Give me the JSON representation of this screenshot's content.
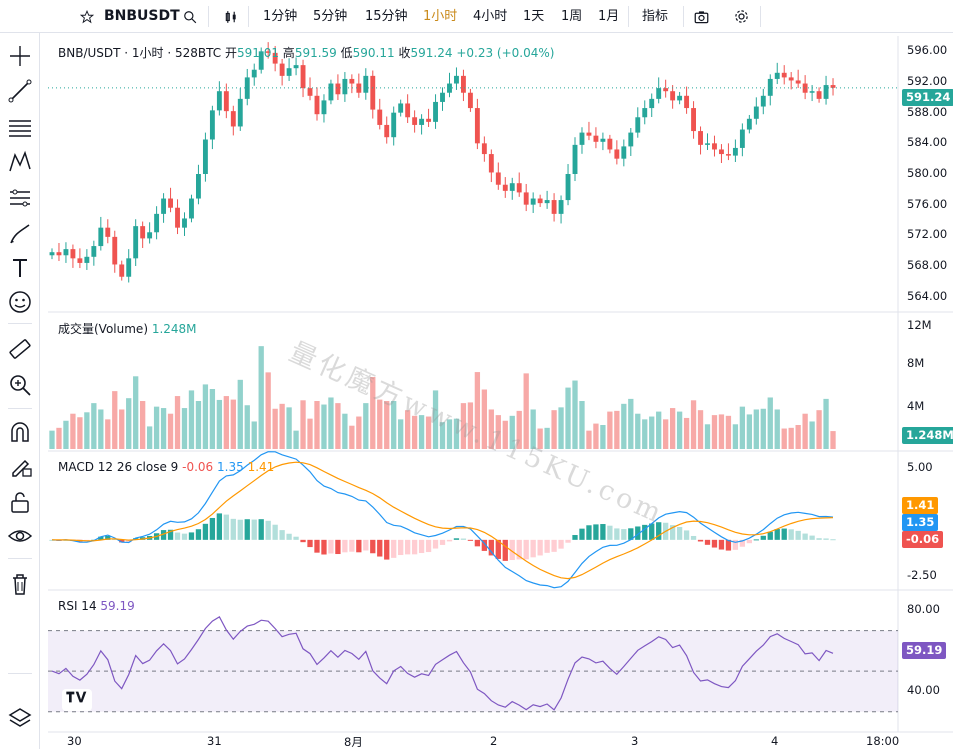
{
  "toolbar": {
    "symbol": "BNBUSDT",
    "intervals": [
      "1分钟",
      "5分钟",
      "15分钟",
      "1小时",
      "4小时",
      "1天",
      "1周",
      "1月"
    ],
    "active_interval": "1小时",
    "indicators_label": "指标",
    "icons": [
      "star-icon",
      "search-icon",
      "candle-type-icon",
      "camera-icon",
      "gear-icon"
    ]
  },
  "left_tools": [
    "crosshair-icon",
    "trend-line-icon",
    "fib-icon",
    "pattern-icon",
    "gann-icon",
    "brush-icon",
    "text-icon",
    "emoji-icon",
    "ruler-icon",
    "zoom-in-icon",
    "magnet-icon",
    "lock-draw-icon",
    "unlock-icon",
    "eye-icon",
    "trash-icon",
    "layers-icon"
  ],
  "legend": {
    "title": "BNB/USDT · 1小时 · 528BTC",
    "open_label": "开",
    "open": "591.01",
    "high_label": "高",
    "high": "591.59",
    "low_label": "低",
    "low": "590.11",
    "close_label": "收",
    "close": "591.24",
    "change": "+0.23 (+0.04%)"
  },
  "volume_legend": {
    "label": "成交量(Volume)",
    "value": "1.248M"
  },
  "macd_legend": {
    "label": "MACD 12 26 close 9",
    "hist": "-0.06",
    "macd": "1.35",
    "signal": "1.41"
  },
  "rsi_legend": {
    "label": "RSI 14",
    "value": "59.19"
  },
  "price_axis": [
    "596.00",
    "592.00",
    "588.00",
    "584.00",
    "580.00",
    "576.00",
    "572.00",
    "568.00",
    "564.00"
  ],
  "volume_axis": [
    "12M",
    "8M",
    "4M"
  ],
  "macd_axis": [
    "5.00",
    "-2.50"
  ],
  "rsi_axis": [
    "80.00",
    "40.00"
  ],
  "time_axis": [
    "30",
    "31",
    "8月",
    "2",
    "3",
    "4",
    "18:00"
  ],
  "tags": {
    "price": "591.24",
    "volume": "1.248M",
    "signal": "1.41",
    "macd": "1.35",
    "hist": "-0.06",
    "rsi": "59.19"
  },
  "colors": {
    "up": "#26a69a",
    "down": "#ef5350",
    "macd": "#2196f3",
    "signal": "#ff9800",
    "rsi": "#7e57c2",
    "accent": "#c98a1b"
  },
  "watermark": "量化魔方www.115KU.com",
  "chart_data": {
    "type": "candlestick",
    "close_series": [
      569.8,
      569.4,
      570.2,
      569.0,
      568.4,
      569.2,
      570.6,
      573.0,
      571.8,
      568.2,
      566.6,
      569.0,
      573.2,
      571.6,
      572.4,
      574.8,
      576.8,
      575.6,
      573.0,
      574.2,
      576.8,
      580.0,
      584.5,
      588.3,
      590.8,
      588.2,
      586.2,
      589.8,
      592.6,
      593.6,
      596.0,
      595.8,
      594.4,
      592.8,
      593.8,
      594.2,
      591.2,
      590.2,
      587.8,
      589.6,
      591.8,
      590.4,
      592.4,
      591.8,
      590.6,
      592.8,
      588.4,
      586.4,
      584.8,
      588.0,
      589.2,
      587.4,
      586.4,
      587.2,
      586.8,
      589.4,
      590.6,
      591.8,
      592.8,
      590.6,
      588.6,
      584.0,
      582.6,
      580.2,
      578.6,
      577.8,
      578.8,
      577.6,
      576.0,
      576.8,
      576.2,
      576.6,
      574.8,
      576.6,
      580.0,
      583.8,
      585.4,
      585.0,
      584.2,
      584.6,
      583.2,
      582.0,
      583.6,
      585.4,
      587.4,
      588.6,
      589.8,
      591.2,
      590.8,
      589.6,
      590.2,
      588.6,
      585.6,
      583.8,
      584.0,
      583.2,
      582.6,
      582.4,
      583.4,
      585.8,
      587.2,
      588.8,
      590.2,
      592.4,
      593.2,
      592.6,
      592.2,
      591.8,
      590.6,
      590.8,
      589.8,
      591.6,
      591.24
    ],
    "volume_axis_M": [
      12,
      8,
      4
    ],
    "macd": {
      "fast": 12,
      "slow": 26,
      "signal": 9,
      "last_macd": 1.35,
      "last_signal": 1.41,
      "last_hist": -0.06
    },
    "rsi": {
      "period": 14,
      "last": 59.19,
      "bands": [
        70,
        50,
        30
      ]
    },
    "price_range": [
      562,
      598
    ],
    "x_labels": [
      "30",
      "31",
      "8月",
      "2",
      "3",
      "4",
      "18:00"
    ]
  }
}
